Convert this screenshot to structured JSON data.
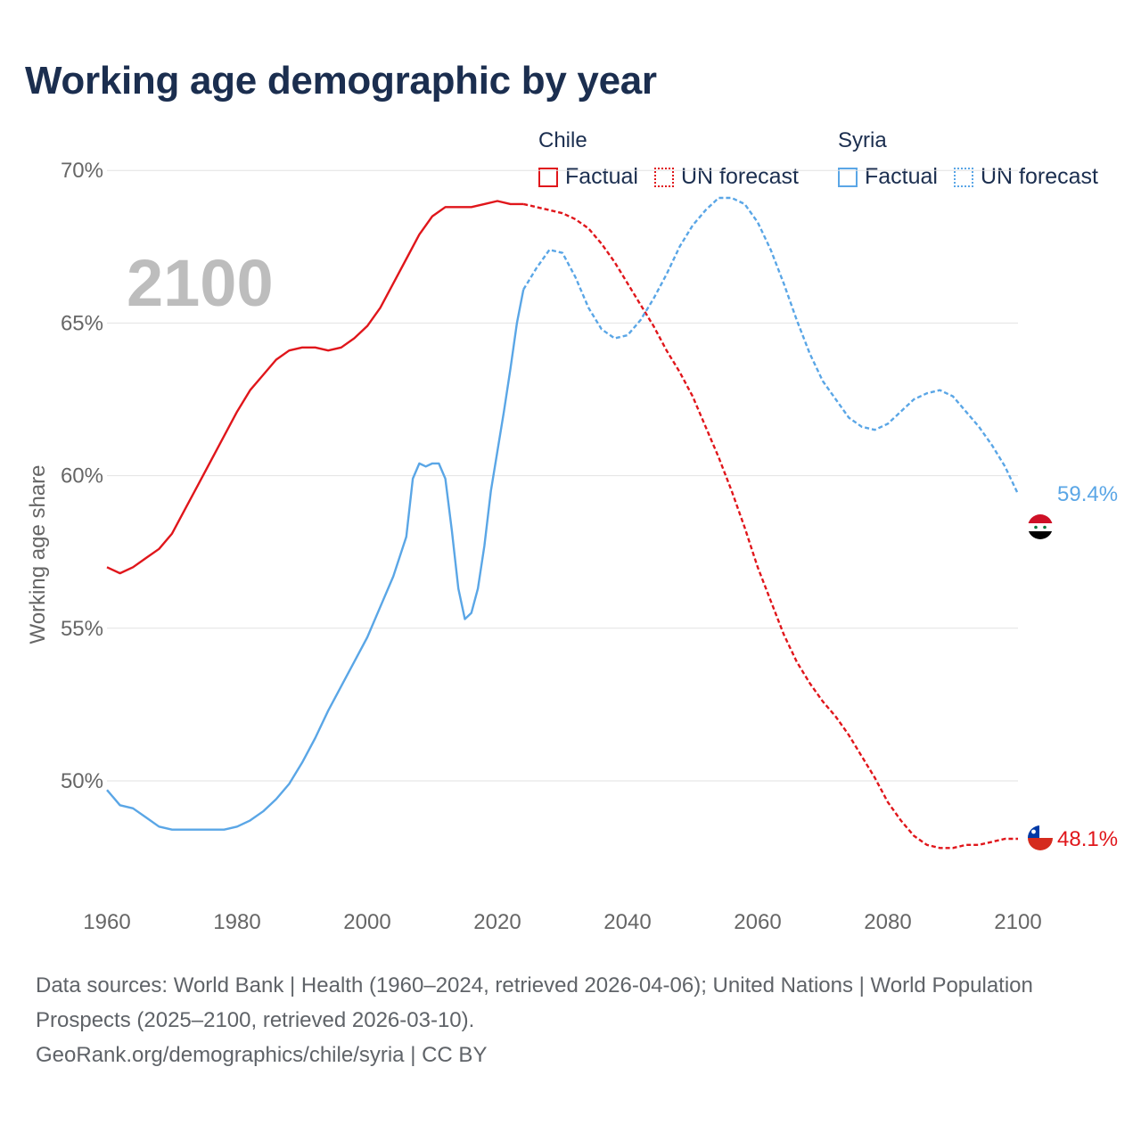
{
  "title": "Working age demographic by year",
  "colors": {
    "chile": "#e0161b",
    "syria": "#5aa6e6",
    "grid": "#e2e2e2",
    "axis_text": "#666666",
    "year_watermark": "#bdbdbd"
  },
  "legend": [
    {
      "group": "Chile",
      "items": [
        {
          "label": "Factual",
          "style": "solid",
          "color": "#e0161b"
        },
        {
          "label": "UN forecast",
          "style": "dotted",
          "color": "#e0161b"
        }
      ]
    },
    {
      "group": "Syria",
      "items": [
        {
          "label": "Factual",
          "style": "solid",
          "color": "#5aa6e6"
        },
        {
          "label": "UN forecast",
          "style": "dotted",
          "color": "#5aa6e6"
        }
      ]
    }
  ],
  "footer": {
    "sources": "Data sources: World Bank | Health (1960–2024, retrieved 2026-04-06); United Nations | World Population Prospects (2025–2100, retrieved 2026-03-10).",
    "credit": "GeoRank.org/demographics/chile/syria | CC BY"
  },
  "chart_data": {
    "type": "line",
    "title": "Working age demographic by year",
    "xlabel": "",
    "ylabel": "Working age share",
    "xlim": [
      1960,
      2100
    ],
    "ylim": [
      45.5,
      71
    ],
    "x_ticks": [
      1960,
      1980,
      2000,
      2020,
      2040,
      2060,
      2080,
      2100
    ],
    "x_tick_labels": [
      "1960",
      "1980",
      "2000",
      "2020",
      "2040",
      "2060",
      "2080",
      "2100"
    ],
    "y_ticks": [
      50,
      55,
      60,
      65,
      70
    ],
    "y_tick_labels": [
      "50%",
      "55%",
      "60%",
      "65%",
      "70%"
    ],
    "grid": true,
    "year_watermark": "2100",
    "forecast_start": 2024,
    "series": [
      {
        "name": "Chile",
        "color": "#e0161b",
        "end_label": "48.1%",
        "points": [
          [
            1960,
            57.0
          ],
          [
            1962,
            56.8
          ],
          [
            1964,
            57.0
          ],
          [
            1966,
            57.3
          ],
          [
            1968,
            57.6
          ],
          [
            1970,
            58.1
          ],
          [
            1972,
            58.9
          ],
          [
            1974,
            59.7
          ],
          [
            1976,
            60.5
          ],
          [
            1978,
            61.3
          ],
          [
            1980,
            62.1
          ],
          [
            1982,
            62.8
          ],
          [
            1984,
            63.3
          ],
          [
            1986,
            63.8
          ],
          [
            1988,
            64.1
          ],
          [
            1990,
            64.2
          ],
          [
            1992,
            64.2
          ],
          [
            1994,
            64.1
          ],
          [
            1996,
            64.2
          ],
          [
            1998,
            64.5
          ],
          [
            2000,
            64.9
          ],
          [
            2002,
            65.5
          ],
          [
            2004,
            66.3
          ],
          [
            2006,
            67.1
          ],
          [
            2008,
            67.9
          ],
          [
            2010,
            68.5
          ],
          [
            2012,
            68.8
          ],
          [
            2014,
            68.8
          ],
          [
            2016,
            68.8
          ],
          [
            2018,
            68.9
          ],
          [
            2020,
            69.0
          ],
          [
            2022,
            68.9
          ],
          [
            2024,
            68.9
          ],
          [
            2026,
            68.8
          ],
          [
            2028,
            68.7
          ],
          [
            2030,
            68.6
          ],
          [
            2032,
            68.4
          ],
          [
            2034,
            68.1
          ],
          [
            2036,
            67.6
          ],
          [
            2038,
            67.0
          ],
          [
            2040,
            66.3
          ],
          [
            2042,
            65.6
          ],
          [
            2044,
            64.9
          ],
          [
            2046,
            64.1
          ],
          [
            2048,
            63.4
          ],
          [
            2050,
            62.6
          ],
          [
            2052,
            61.6
          ],
          [
            2054,
            60.6
          ],
          [
            2056,
            59.5
          ],
          [
            2058,
            58.3
          ],
          [
            2060,
            57.0
          ],
          [
            2062,
            55.9
          ],
          [
            2064,
            54.8
          ],
          [
            2066,
            53.9
          ],
          [
            2068,
            53.2
          ],
          [
            2070,
            52.6
          ],
          [
            2072,
            52.1
          ],
          [
            2074,
            51.5
          ],
          [
            2076,
            50.8
          ],
          [
            2078,
            50.1
          ],
          [
            2080,
            49.3
          ],
          [
            2082,
            48.7
          ],
          [
            2084,
            48.2
          ],
          [
            2086,
            47.9
          ],
          [
            2088,
            47.8
          ],
          [
            2090,
            47.8
          ],
          [
            2092,
            47.9
          ],
          [
            2094,
            47.9
          ],
          [
            2096,
            48.0
          ],
          [
            2098,
            48.1
          ],
          [
            2100,
            48.1
          ]
        ]
      },
      {
        "name": "Syria",
        "color": "#5aa6e6",
        "end_label": "59.4%",
        "points": [
          [
            1960,
            49.7
          ],
          [
            1962,
            49.2
          ],
          [
            1964,
            49.1
          ],
          [
            1966,
            48.8
          ],
          [
            1968,
            48.5
          ],
          [
            1970,
            48.4
          ],
          [
            1972,
            48.4
          ],
          [
            1974,
            48.4
          ],
          [
            1976,
            48.4
          ],
          [
            1978,
            48.4
          ],
          [
            1980,
            48.5
          ],
          [
            1982,
            48.7
          ],
          [
            1984,
            49.0
          ],
          [
            1986,
            49.4
          ],
          [
            1988,
            49.9
          ],
          [
            1990,
            50.6
          ],
          [
            1992,
            51.4
          ],
          [
            1994,
            52.3
          ],
          [
            1996,
            53.1
          ],
          [
            1998,
            53.9
          ],
          [
            2000,
            54.7
          ],
          [
            2002,
            55.7
          ],
          [
            2004,
            56.7
          ],
          [
            2006,
            58.0
          ],
          [
            2007,
            59.9
          ],
          [
            2008,
            60.4
          ],
          [
            2009,
            60.3
          ],
          [
            2010,
            60.4
          ],
          [
            2011,
            60.4
          ],
          [
            2012,
            59.9
          ],
          [
            2013,
            58.2
          ],
          [
            2014,
            56.3
          ],
          [
            2015,
            55.3
          ],
          [
            2016,
            55.5
          ],
          [
            2017,
            56.3
          ],
          [
            2018,
            57.7
          ],
          [
            2019,
            59.5
          ],
          [
            2020,
            60.8
          ],
          [
            2021,
            62.1
          ],
          [
            2022,
            63.5
          ],
          [
            2023,
            65.0
          ],
          [
            2024,
            66.1
          ],
          [
            2026,
            66.8
          ],
          [
            2028,
            67.4
          ],
          [
            2030,
            67.3
          ],
          [
            2032,
            66.5
          ],
          [
            2034,
            65.5
          ],
          [
            2036,
            64.8
          ],
          [
            2038,
            64.5
          ],
          [
            2040,
            64.6
          ],
          [
            2042,
            65.1
          ],
          [
            2044,
            65.8
          ],
          [
            2046,
            66.6
          ],
          [
            2048,
            67.5
          ],
          [
            2050,
            68.2
          ],
          [
            2052,
            68.7
          ],
          [
            2054,
            69.1
          ],
          [
            2056,
            69.1
          ],
          [
            2058,
            68.9
          ],
          [
            2060,
            68.3
          ],
          [
            2062,
            67.4
          ],
          [
            2064,
            66.3
          ],
          [
            2066,
            65.1
          ],
          [
            2068,
            64.0
          ],
          [
            2070,
            63.1
          ],
          [
            2072,
            62.5
          ],
          [
            2074,
            61.9
          ],
          [
            2076,
            61.6
          ],
          [
            2078,
            61.5
          ],
          [
            2080,
            61.7
          ],
          [
            2082,
            62.1
          ],
          [
            2084,
            62.5
          ],
          [
            2086,
            62.7
          ],
          [
            2088,
            62.8
          ],
          [
            2090,
            62.6
          ],
          [
            2092,
            62.1
          ],
          [
            2094,
            61.6
          ],
          [
            2096,
            61.0
          ],
          [
            2098,
            60.3
          ],
          [
            2100,
            59.4
          ]
        ]
      }
    ]
  }
}
